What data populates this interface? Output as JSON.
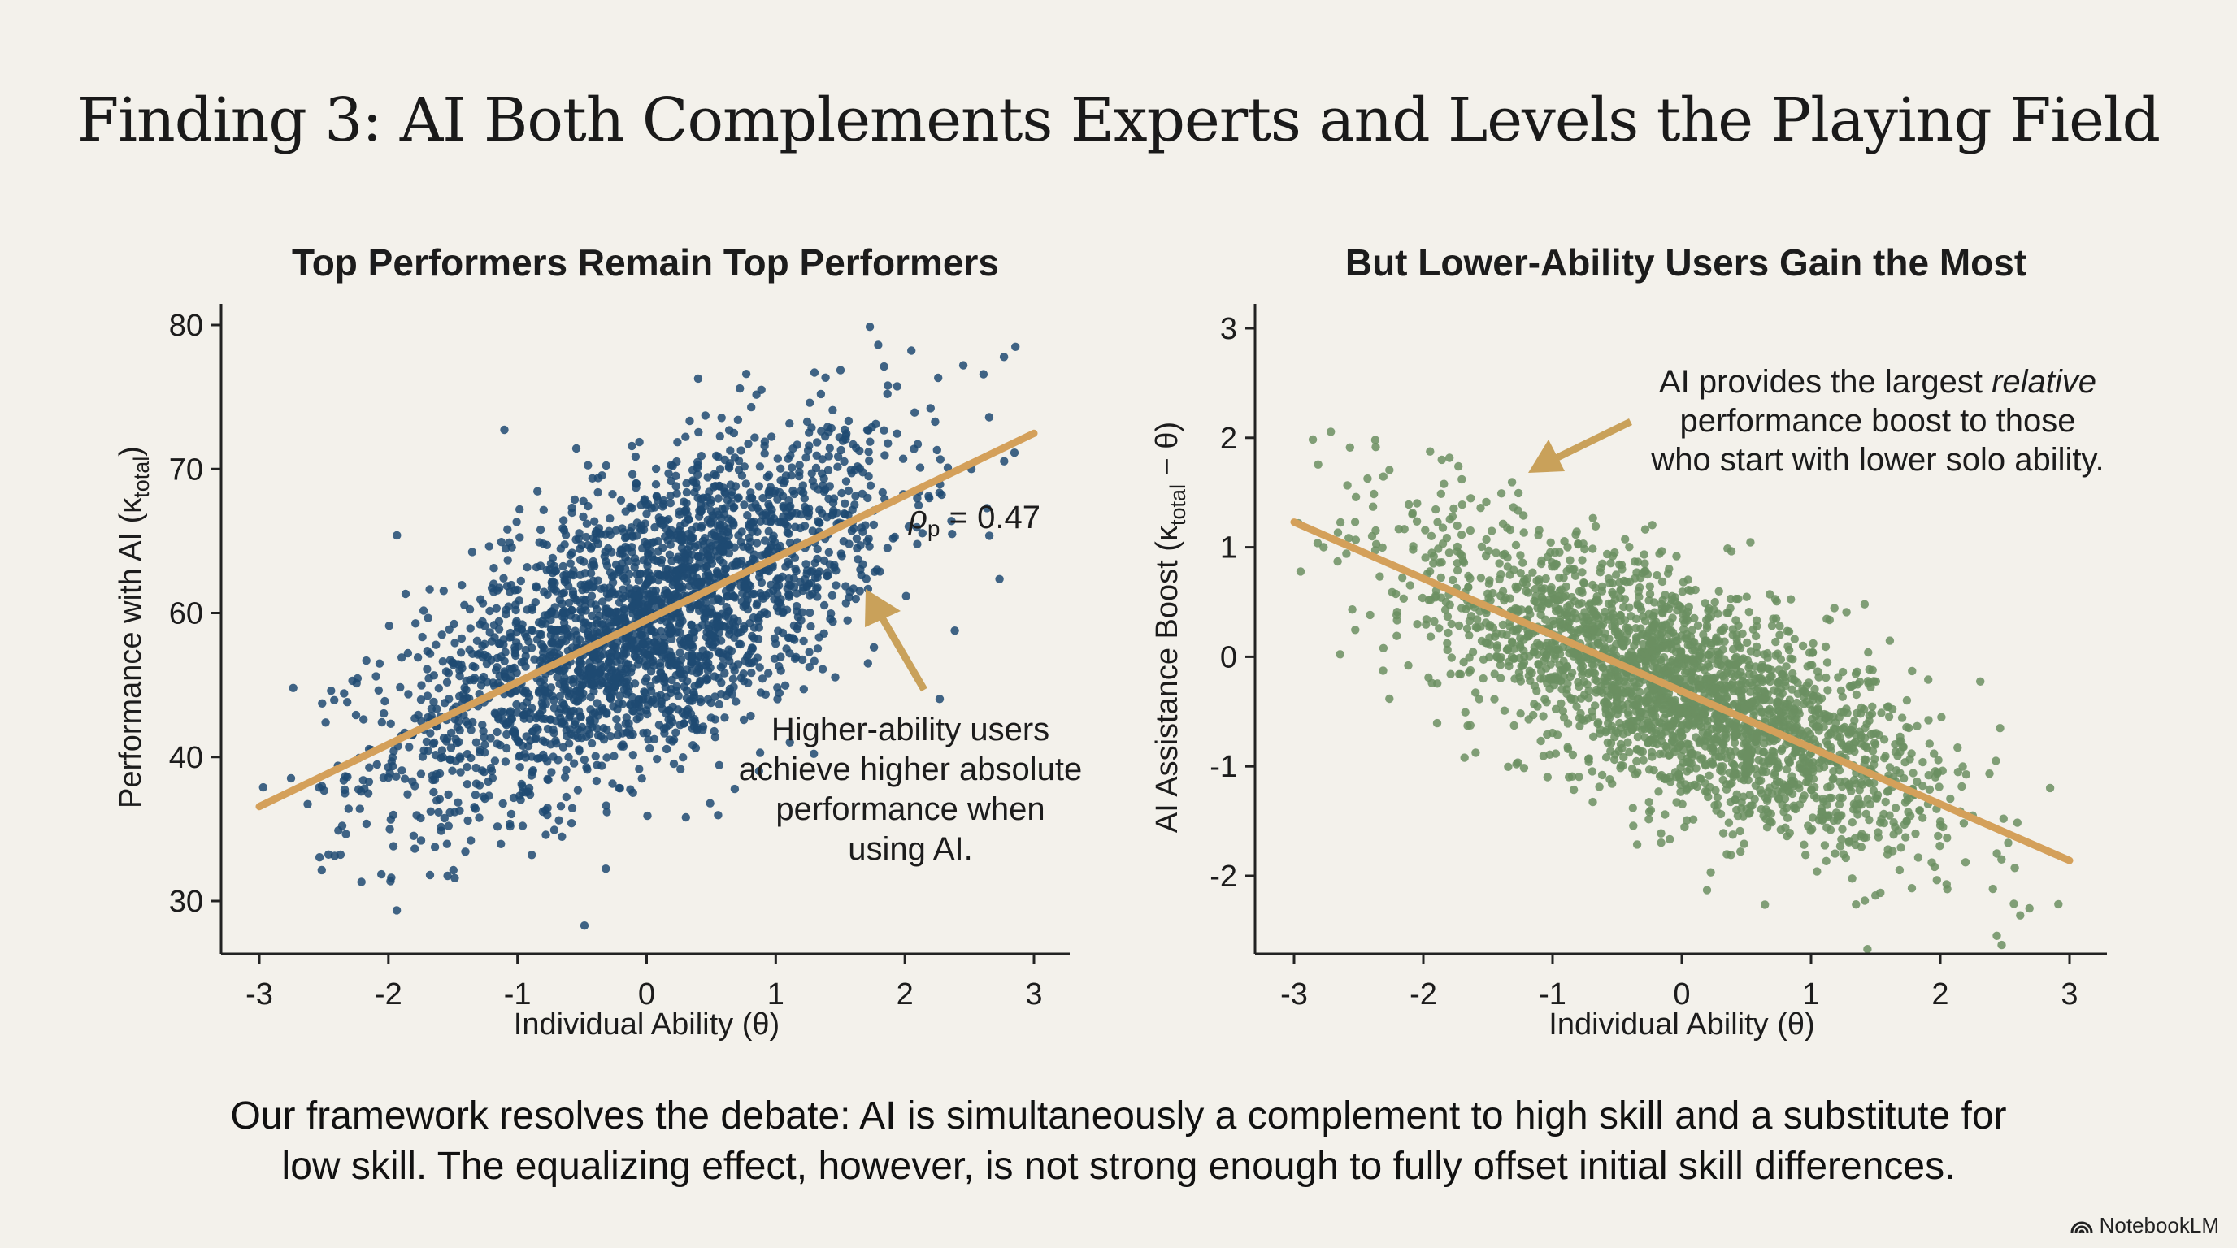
{
  "title": "Finding 3: AI Both Complements Experts and Levels the Playing Field",
  "caption_lines": [
    "Our framework resolves the debate: AI is simultaneously a complement to high skill and a substitute for",
    "low skill. The equalizing effect, however, is not strong enough to fully offset initial skill differences."
  ],
  "watermark": "NotebookLM",
  "colors": {
    "background": "#f3f1eb",
    "left_points": "#1f4a72",
    "right_points": "#6b8f62",
    "trendline": "#d4a05a",
    "arrow": "#c9a15a"
  },
  "chart_data": [
    {
      "type": "scatter",
      "title": "Top Performers Remain Top Performers",
      "xlabel": "Individual Ability (θ)",
      "ylabel": "Performance with AI (κ",
      "ylabel_sub": "total",
      "ylabel_close": ")",
      "xlim": [
        -3.3,
        3.3
      ],
      "ylim": [
        26,
        81.5
      ],
      "xticks": [
        "-3",
        "-2",
        "-1",
        "0",
        "1",
        "2",
        "3"
      ],
      "yticks": [
        "80",
        "70",
        "60",
        "40",
        "30"
      ],
      "ytick_range": [
        30,
        80
      ],
      "trendline": {
        "x": [
          -3,
          3
        ],
        "y": [
          38.2,
          70.6
        ]
      },
      "annotation_stat": "ρ",
      "annotation_stat_sub": "p",
      "annotation_stat_value": " = 0.47",
      "annotation_lines": [
        "Higher-ability users",
        "achieve higher absolute",
        "performance when",
        "using AI."
      ],
      "point_color": "#1f4a72"
    },
    {
      "type": "scatter",
      "title": "But Lower-Ability Users Gain the Most",
      "xlabel": "Individual Ability (θ)",
      "ylabel": "AI Assistance Boost (κ",
      "ylabel_sub": "total",
      "ylabel_close": " − θ)",
      "xlim": [
        -3.3,
        3.3
      ],
      "ylim": [
        -2.7,
        3.2
      ],
      "xticks": [
        "-3",
        "-2",
        "-1",
        "0",
        "1",
        "2",
        "3"
      ],
      "yticks": [
        "3",
        "2",
        "1",
        "0",
        "-1",
        "-2"
      ],
      "ytick_range": [
        -2,
        3
      ],
      "trendline": {
        "x": [
          -3,
          3
        ],
        "y": [
          1.23,
          -1.86
        ]
      },
      "annotation_lines_rich": [
        {
          "pre": "AI provides the largest ",
          "em": "relative",
          "post": ""
        },
        {
          "pre": "performance boost to those",
          "em": "",
          "post": ""
        },
        {
          "pre": "who start with lower solo ability.",
          "em": "",
          "post": ""
        }
      ],
      "point_color": "#6b8f62"
    }
  ]
}
